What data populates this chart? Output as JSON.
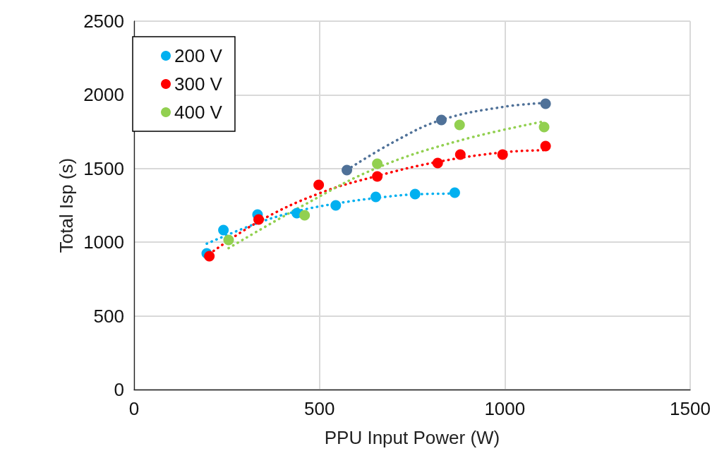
{
  "chart_data": {
    "type": "scatter",
    "xlabel": "PPU Input Power (W)",
    "ylabel": "Total Isp (s)",
    "xlim": [
      0,
      1500
    ],
    "xticks": [
      0,
      500,
      1000,
      1500
    ],
    "ylim": [
      0,
      2500
    ],
    "yticks": [
      0,
      500,
      1000,
      1500,
      2000,
      2500
    ],
    "grid": true,
    "legend": "top left",
    "marker": "circle",
    "series": [
      {
        "type": "line",
        "line_style": "dotted",
        "marker": "none",
        "color": "#00b0f0",
        "x": [
          196,
          333,
          439,
          544,
          652,
          758,
          865
        ],
        "values": [
          990,
          1130,
          1210,
          1262,
          1300,
          1325,
          1330
        ]
      },
      {
        "type": "line",
        "line_style": "dotted",
        "marker": "none",
        "color": "#ff0000",
        "x": [
          203,
          336,
          498,
          656,
          819,
          994,
          1110
        ],
        "values": [
          920,
          1140,
          1330,
          1450,
          1545,
          1610,
          1625
        ]
      },
      {
        "type": "line",
        "line_style": "dotted",
        "marker": "none",
        "color": "#92d050",
        "x": [
          255,
          460,
          656,
          878,
          1106
        ],
        "values": [
          960,
          1255,
          1505,
          1690,
          1820
        ]
      },
      {
        "type": "line",
        "line_style": "dotted",
        "marker": "none",
        "color": "#4f7198",
        "x": [
          574,
          700,
          829,
          1000,
          1110
        ],
        "values": [
          1490,
          1680,
          1830,
          1920,
          1945
        ]
      },
      {
        "name": "200 V",
        "color": "#00b0f0",
        "x": [
          196,
          241,
          333,
          439,
          544,
          652,
          758,
          865
        ],
        "values": [
          924,
          1082,
          1188,
          1197,
          1250,
          1307,
          1327,
          1336
        ]
      },
      {
        "name": "300 V",
        "color": "#ff0000",
        "x": [
          203,
          336,
          498,
          656,
          819,
          880,
          994,
          1110
        ],
        "values": [
          905,
          1154,
          1389,
          1446,
          1537,
          1595,
          1595,
          1652
        ]
      },
      {
        "name": "400 V",
        "color": "#92d050",
        "x": [
          255,
          460,
          656,
          878,
          1106
        ],
        "values": [
          1015,
          1183,
          1533,
          1796,
          1782
        ]
      },
      {
        "color": "#4f7198",
        "x": [
          574,
          829,
          1110
        ],
        "values": [
          1489,
          1830,
          1940
        ]
      }
    ]
  }
}
